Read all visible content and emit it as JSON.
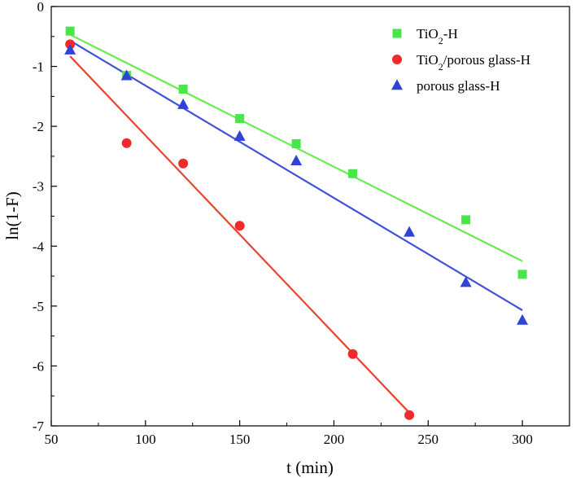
{
  "chart_data": {
    "type": "scatter",
    "title": "",
    "xlabel": "t (min)",
    "ylabel": "ln(1-F)",
    "xlim": [
      50,
      325
    ],
    "ylim": [
      -7,
      0
    ],
    "xticks": [
      50,
      100,
      150,
      200,
      250,
      300
    ],
    "yticks": [
      0,
      -1,
      -2,
      -3,
      -4,
      -5,
      -6,
      -7
    ],
    "legend_position": "top-right",
    "series": [
      {
        "name": "TiO2-H",
        "legend_parts": [
          "TiO",
          "2",
          "-H"
        ],
        "marker": "square",
        "color": "#49e64a",
        "line_color": "#66ee4f",
        "x": [
          60,
          90,
          120,
          150,
          180,
          210,
          270,
          300
        ],
        "y": [
          -0.41,
          -1.15,
          -1.38,
          -1.87,
          -2.29,
          -2.79,
          -3.56,
          -4.47
        ],
        "fit": {
          "x": [
            60,
            300
          ],
          "y": [
            -0.47,
            -4.25
          ]
        }
      },
      {
        "name": "TiO2/porous glass-H",
        "legend_parts": [
          "TiO",
          "2",
          "/porous glass-H"
        ],
        "marker": "circle",
        "color": "#ee2a2a",
        "line_color": "#e8442e",
        "x": [
          60,
          90,
          120,
          150,
          210,
          240
        ],
        "y": [
          -0.63,
          -2.28,
          -2.62,
          -3.66,
          -5.8,
          -6.82
        ],
        "fit": {
          "x": [
            60,
            240
          ],
          "y": [
            -0.83,
            -6.78
          ]
        }
      },
      {
        "name": "porous glass-H",
        "legend_parts": [
          "porous glass-H",
          "",
          ""
        ],
        "marker": "triangle",
        "color": "#2f44d6",
        "line_color": "#3f4fd8",
        "x": [
          60,
          90,
          120,
          150,
          180,
          240,
          270,
          300
        ],
        "y": [
          -0.73,
          -1.16,
          -1.64,
          -2.17,
          -2.58,
          -3.77,
          -4.61,
          -5.24
        ],
        "fit": {
          "x": [
            60,
            300
          ],
          "y": [
            -0.57,
            -5.07
          ]
        }
      }
    ]
  }
}
